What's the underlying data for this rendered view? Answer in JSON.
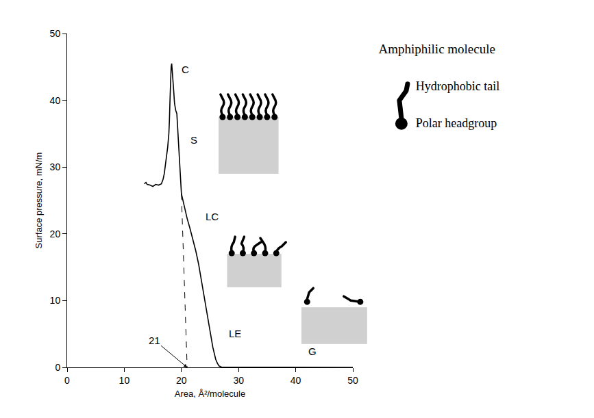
{
  "chart_data": {
    "type": "line",
    "x_label": "Area, Å²/molecule",
    "y_label": "Surface pressure, mN/m",
    "x": [
      50,
      45,
      40,
      35,
      30,
      28,
      27,
      26.6,
      26.3,
      26,
      25.5,
      25,
      24.5,
      24,
      23.5,
      23,
      22.5,
      22,
      21.5,
      21,
      20.5,
      20,
      19.8,
      19.6,
      19.4,
      19.2,
      19,
      18.8,
      18.6,
      18.4,
      18.3,
      18.2,
      18.1,
      18,
      17.9,
      17.8,
      17.6,
      17.4,
      17.2,
      17,
      16.8,
      16.5,
      16,
      15.5,
      15,
      14.5,
      14,
      13.8,
      13.5
    ],
    "values": [
      0,
      0,
      0,
      0,
      0,
      0,
      0.05,
      0.2,
      0.6,
      1.2,
      3,
      5.5,
      8,
      10.5,
      13,
      15.5,
      17.5,
      19.3,
      20.8,
      22.3,
      24,
      26,
      29,
      32,
      35,
      38,
      38.5,
      39.5,
      42,
      44.5,
      45.5,
      45,
      43,
      40,
      37,
      35,
      33,
      31.5,
      30,
      29,
      28.2,
      27.5,
      27.3,
      27.4,
      27.1,
      27.3,
      27.4,
      27.7,
      27.5
    ],
    "color": "#000000",
    "extrapolation": {
      "x": [
        20,
        21
      ],
      "values": [
        26,
        0
      ],
      "line_style": "dashed"
    },
    "xlim": [
      0,
      50
    ],
    "ylim": [
      0,
      50
    ],
    "xticks": [
      0,
      10,
      20,
      30,
      40,
      50
    ],
    "yticks": [
      0,
      10,
      20,
      30,
      40,
      50
    ],
    "grid": false,
    "annotations": [
      {
        "text": "C",
        "x": 19.8,
        "y": 43.5
      },
      {
        "text": "S",
        "x": 21.4,
        "y": 33
      },
      {
        "text": "LC",
        "x": 24,
        "y": 21.5
      },
      {
        "text": "LE",
        "x": 28,
        "y": 4
      },
      {
        "text": "G",
        "x": 42,
        "y": 1.3
      }
    ],
    "arrow_label": {
      "text": "21",
      "x": 21,
      "y": 0
    },
    "inset": {
      "title": "Amphiphilic molecule",
      "tail_label": "Hydrophobic tail",
      "head_label": "Polar headgroup"
    }
  }
}
